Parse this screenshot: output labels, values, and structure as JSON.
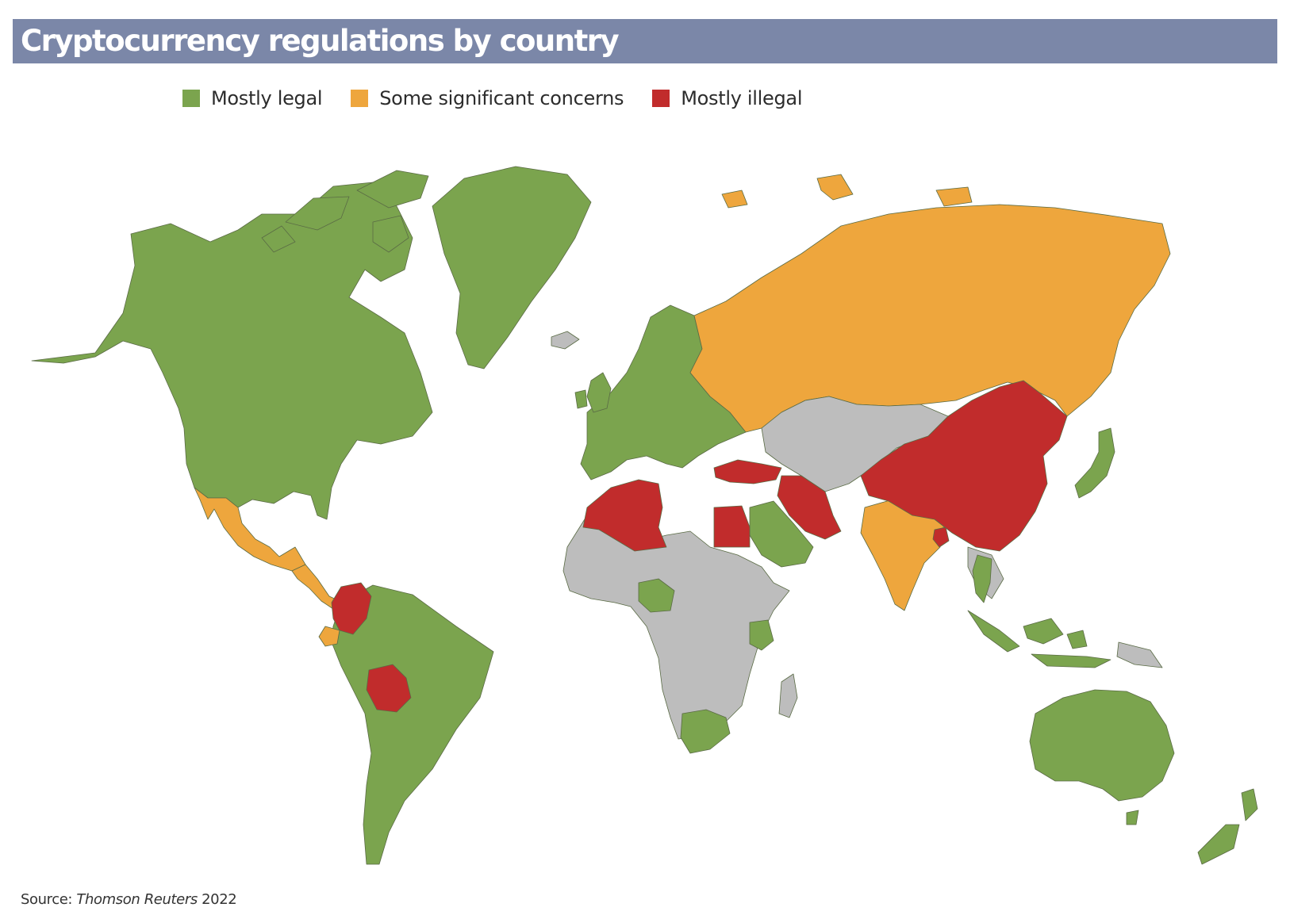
{
  "title": "Cryptocurrency regulations by country",
  "legend": [
    {
      "label": "Mostly legal",
      "color": "#7ba44e"
    },
    {
      "label": "Some significant concerns",
      "color": "#eea63d"
    },
    {
      "label": "Mostly illegal",
      "color": "#c12c2c"
    }
  ],
  "no_data_color": "#bdbdbd",
  "source": {
    "prefix": "Source: ",
    "name": "Thomson Reuters",
    "year": " 2022"
  },
  "regions": {
    "north_america": "legal",
    "greenland": "legal",
    "mexico": "concerns",
    "central_america": "concerns",
    "colombia": "illegal",
    "ecuador": "concerns",
    "bolivia": "illegal",
    "south_america_rest": "legal",
    "europe": "legal",
    "russia": "concerns",
    "turkey": "illegal",
    "iran": "illegal",
    "saudi_arabia": "legal",
    "india": "concerns",
    "china": "illegal",
    "bangladesh": "illegal",
    "japan": "legal",
    "thailand": "legal",
    "indonesia": "legal",
    "australia": "legal",
    "new_zealand": "legal",
    "morocco_algeria": "illegal",
    "egypt": "illegal",
    "nigeria": "legal",
    "kenya": "legal",
    "south_africa": "legal",
    "africa_rest": "nodata",
    "central_asia": "nodata",
    "iceland": "nodata",
    "madagascar": "nodata"
  }
}
